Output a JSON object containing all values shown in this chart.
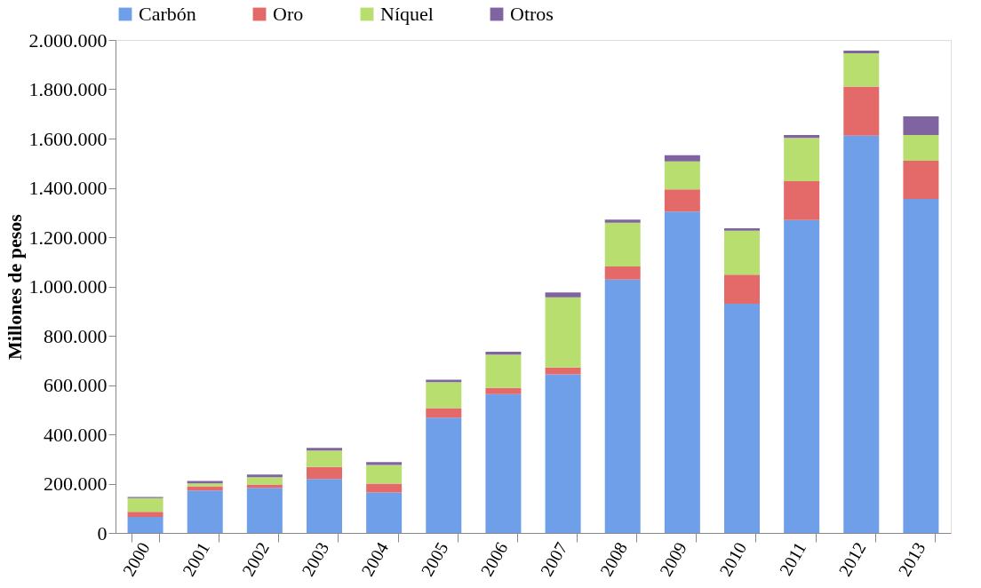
{
  "chart_data": {
    "type": "bar",
    "stacked": true,
    "ylabel": "Millones de pesos",
    "categories": [
      "2000",
      "2001",
      "2002",
      "2003",
      "2004",
      "2005",
      "2006",
      "2007",
      "2008",
      "2009",
      "2010",
      "2011",
      "2012",
      "2013"
    ],
    "series": [
      {
        "name": "Carbón",
        "color": "#6f9fe8",
        "values": [
          65000,
          172000,
          183000,
          219000,
          164000,
          468000,
          563000,
          643000,
          1028000,
          1304000,
          930000,
          1269000,
          1612000,
          1355000
        ]
      },
      {
        "name": "Oro",
        "color": "#e46a6a",
        "values": [
          21000,
          17000,
          13000,
          49000,
          36000,
          38000,
          25000,
          28000,
          53000,
          90000,
          118000,
          158000,
          199000,
          155000
        ]
      },
      {
        "name": "Níquel",
        "color": "#b8de70",
        "values": [
          55000,
          12000,
          30000,
          66000,
          76000,
          106000,
          135000,
          285000,
          178000,
          113000,
          178000,
          176000,
          135000,
          104000
        ]
      },
      {
        "name": "Otros",
        "color": "#8064a2",
        "values": [
          5000,
          10000,
          11000,
          11000,
          11000,
          10000,
          12000,
          20000,
          12000,
          25000,
          10000,
          11000,
          11000,
          76000
        ]
      }
    ],
    "ylim": [
      0,
      2000000
    ],
    "yticks": [
      {
        "value": 0,
        "label": "0"
      },
      {
        "value": 200000,
        "label": "200.000"
      },
      {
        "value": 400000,
        "label": "400.000"
      },
      {
        "value": 600000,
        "label": "600.000"
      },
      {
        "value": 800000,
        "label": "800.000"
      },
      {
        "value": 1000000,
        "label": "1.000.000"
      },
      {
        "value": 1200000,
        "label": "1.200.000"
      },
      {
        "value": 1400000,
        "label": "1.400.000"
      },
      {
        "value": 1600000,
        "label": "1.600.000"
      },
      {
        "value": 1800000,
        "label": "1.800.000"
      },
      {
        "value": 2000000,
        "label": "2.000.000"
      }
    ],
    "legend": "top",
    "grid": false
  }
}
